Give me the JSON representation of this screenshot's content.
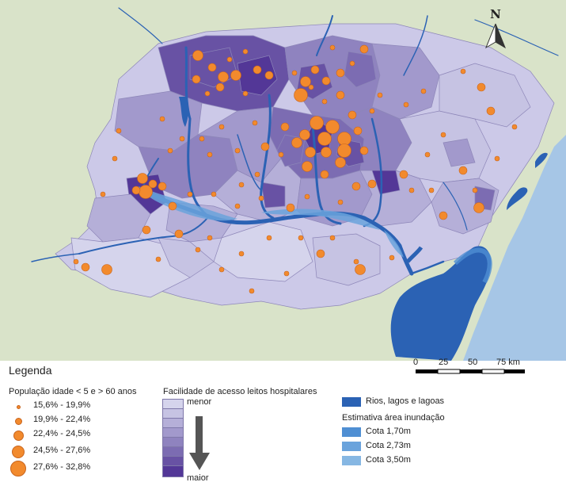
{
  "north_label": "N",
  "scalebar": {
    "ticks": [
      "0",
      "25",
      "50",
      "75 km"
    ]
  },
  "legend": {
    "title": "Legenda",
    "population": {
      "heading": "População idade < 5  e > 60 anos",
      "classes": [
        "15,6% - 19,9%",
        "19,9% - 22,4%",
        "22,4% - 24,5%",
        "24,5% - 27,6%",
        "27,6% - 32,8%"
      ]
    },
    "facility": {
      "heading": "Facilidade de acesso leitos hospitalares",
      "low_label": "menor",
      "high_label": "maior",
      "colors": [
        "#d5d4ec",
        "#c6c3e3",
        "#b5afd8",
        "#a299cc",
        "#8f83bf",
        "#7c6cb2",
        "#6852a4",
        "#533797"
      ]
    },
    "water": {
      "label": "Rios, lagos e lagoas",
      "color": "#2b62b4"
    },
    "flood": {
      "heading": "Estimativa área inundação",
      "levels": [
        {
          "label": "Cota 1,70m",
          "color": "#4f8fd3"
        },
        {
          "label": "Cota 2,73m",
          "color": "#6aa3dc"
        },
        {
          "label": "Cota 3,50m",
          "color": "#86b7e3"
        }
      ]
    }
  },
  "colors": {
    "bubble": "#f28a2d",
    "background": "#d9e3c9",
    "ocean": "#a6c6e6"
  }
}
